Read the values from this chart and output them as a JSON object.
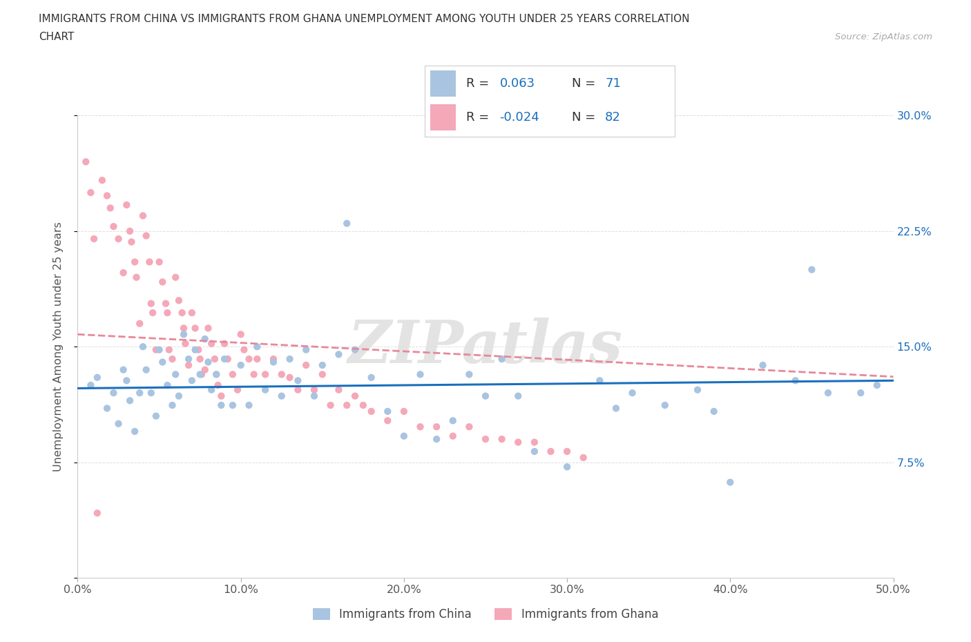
{
  "title_line1": "IMMIGRANTS FROM CHINA VS IMMIGRANTS FROM GHANA UNEMPLOYMENT AMONG YOUTH UNDER 25 YEARS CORRELATION",
  "title_line2": "CHART",
  "source_text": "Source: ZipAtlas.com",
  "ylabel": "Unemployment Among Youth under 25 years",
  "xlim": [
    0.0,
    0.5
  ],
  "ylim": [
    0.0,
    0.3
  ],
  "xticks": [
    0.0,
    0.1,
    0.2,
    0.3,
    0.4,
    0.5
  ],
  "yticks": [
    0.0,
    0.075,
    0.15,
    0.225,
    0.3
  ],
  "xticklabels": [
    "0.0%",
    "10.0%",
    "20.0%",
    "30.0%",
    "40.0%",
    "50.0%"
  ],
  "yticklabels_right": [
    "",
    "7.5%",
    "15.0%",
    "22.5%",
    "30.0%"
  ],
  "china_dot_color": "#a8c4e0",
  "china_line_color": "#1a6fbd",
  "ghana_dot_color": "#f4a8b8",
  "ghana_line_color": "#e8889a",
  "china_R": 0.063,
  "china_N": 71,
  "ghana_R": -0.024,
  "ghana_N": 82,
  "watermark": "ZIPatlas",
  "legend_label_china": "Immigrants from China",
  "legend_label_ghana": "Immigrants from Ghana",
  "stat_text_color": "#1a6fbd",
  "china_trend_start": 0.123,
  "china_trend_slope": 0.01,
  "ghana_trend_start": 0.158,
  "ghana_trend_slope": -0.055,
  "china_scatter_x": [
    0.008,
    0.012,
    0.018,
    0.022,
    0.025,
    0.028,
    0.03,
    0.032,
    0.035,
    0.038,
    0.04,
    0.042,
    0.045,
    0.048,
    0.05,
    0.052,
    0.055,
    0.058,
    0.06,
    0.062,
    0.065,
    0.068,
    0.07,
    0.072,
    0.075,
    0.078,
    0.08,
    0.082,
    0.085,
    0.088,
    0.09,
    0.095,
    0.1,
    0.105,
    0.11,
    0.115,
    0.12,
    0.125,
    0.13,
    0.135,
    0.14,
    0.145,
    0.15,
    0.16,
    0.165,
    0.17,
    0.18,
    0.19,
    0.2,
    0.21,
    0.22,
    0.23,
    0.24,
    0.25,
    0.26,
    0.27,
    0.28,
    0.3,
    0.32,
    0.33,
    0.34,
    0.36,
    0.38,
    0.39,
    0.4,
    0.42,
    0.44,
    0.45,
    0.46,
    0.48,
    0.49
  ],
  "china_scatter_y": [
    0.125,
    0.13,
    0.11,
    0.12,
    0.1,
    0.135,
    0.128,
    0.115,
    0.095,
    0.12,
    0.15,
    0.135,
    0.12,
    0.105,
    0.148,
    0.14,
    0.125,
    0.112,
    0.132,
    0.118,
    0.158,
    0.142,
    0.128,
    0.148,
    0.132,
    0.155,
    0.14,
    0.122,
    0.132,
    0.112,
    0.142,
    0.112,
    0.138,
    0.112,
    0.15,
    0.122,
    0.14,
    0.118,
    0.142,
    0.128,
    0.148,
    0.118,
    0.138,
    0.145,
    0.23,
    0.148,
    0.13,
    0.108,
    0.092,
    0.132,
    0.09,
    0.102,
    0.132,
    0.118,
    0.142,
    0.118,
    0.082,
    0.072,
    0.128,
    0.11,
    0.12,
    0.112,
    0.122,
    0.108,
    0.062,
    0.138,
    0.128,
    0.2,
    0.12,
    0.12,
    0.125
  ],
  "ghana_scatter_x": [
    0.005,
    0.008,
    0.01,
    0.012,
    0.015,
    0.018,
    0.02,
    0.022,
    0.025,
    0.028,
    0.03,
    0.032,
    0.033,
    0.035,
    0.036,
    0.038,
    0.04,
    0.042,
    0.044,
    0.045,
    0.046,
    0.048,
    0.05,
    0.052,
    0.054,
    0.055,
    0.056,
    0.058,
    0.06,
    0.062,
    0.064,
    0.065,
    0.066,
    0.068,
    0.07,
    0.072,
    0.074,
    0.075,
    0.076,
    0.078,
    0.08,
    0.082,
    0.084,
    0.085,
    0.086,
    0.088,
    0.09,
    0.092,
    0.095,
    0.098,
    0.1,
    0.102,
    0.105,
    0.108,
    0.11,
    0.115,
    0.12,
    0.125,
    0.13,
    0.135,
    0.14,
    0.145,
    0.15,
    0.155,
    0.16,
    0.165,
    0.17,
    0.175,
    0.18,
    0.19,
    0.2,
    0.21,
    0.22,
    0.23,
    0.24,
    0.25,
    0.26,
    0.27,
    0.28,
    0.29,
    0.3,
    0.31
  ],
  "ghana_scatter_y": [
    0.27,
    0.25,
    0.22,
    0.042,
    0.258,
    0.248,
    0.24,
    0.228,
    0.22,
    0.198,
    0.242,
    0.225,
    0.218,
    0.205,
    0.195,
    0.165,
    0.235,
    0.222,
    0.205,
    0.178,
    0.172,
    0.148,
    0.205,
    0.192,
    0.178,
    0.172,
    0.148,
    0.142,
    0.195,
    0.18,
    0.172,
    0.162,
    0.152,
    0.138,
    0.172,
    0.162,
    0.148,
    0.142,
    0.132,
    0.135,
    0.162,
    0.152,
    0.142,
    0.132,
    0.125,
    0.118,
    0.152,
    0.142,
    0.132,
    0.122,
    0.158,
    0.148,
    0.142,
    0.132,
    0.142,
    0.132,
    0.142,
    0.132,
    0.13,
    0.122,
    0.138,
    0.122,
    0.132,
    0.112,
    0.122,
    0.112,
    0.118,
    0.112,
    0.108,
    0.102,
    0.108,
    0.098,
    0.098,
    0.092,
    0.098,
    0.09,
    0.09,
    0.088,
    0.088,
    0.082,
    0.082,
    0.078
  ]
}
